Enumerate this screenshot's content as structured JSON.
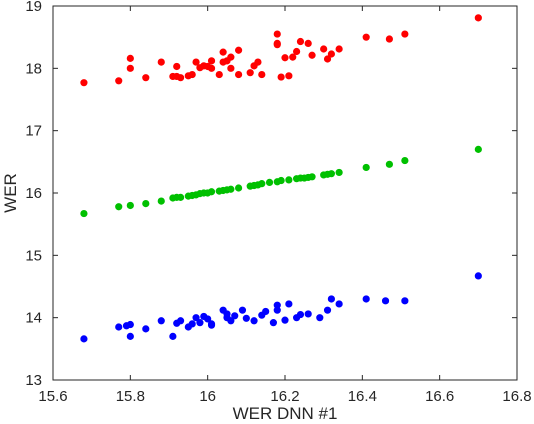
{
  "chart_data": {
    "type": "scatter",
    "title": "",
    "xlabel": "WER DNN #1",
    "ylabel": "WER",
    "xlim": [
      15.6,
      16.8
    ],
    "ylim": [
      13,
      19
    ],
    "x_ticks": [
      "15.6",
      "15.8",
      "16",
      "16.2",
      "16.4",
      "16.6",
      "16.8"
    ],
    "y_ticks": [
      "13",
      "14",
      "15",
      "16",
      "17",
      "18",
      "19"
    ],
    "grid": false,
    "legend": "none",
    "series": [
      {
        "color": "#ff0000",
        "points": [
          [
            15.68,
            17.77
          ],
          [
            15.77,
            17.8
          ],
          [
            15.8,
            18.16
          ],
          [
            15.8,
            18.0
          ],
          [
            15.84,
            17.85
          ],
          [
            15.88,
            18.1
          ],
          [
            15.91,
            17.87
          ],
          [
            15.92,
            18.03
          ],
          [
            15.92,
            17.87
          ],
          [
            15.93,
            17.85
          ],
          [
            15.95,
            17.88
          ],
          [
            15.96,
            17.9
          ],
          [
            15.97,
            18.1
          ],
          [
            15.98,
            18.01
          ],
          [
            15.99,
            18.04
          ],
          [
            16.0,
            18.03
          ],
          [
            16.01,
            18.12
          ],
          [
            16.01,
            18.0
          ],
          [
            16.03,
            17.9
          ],
          [
            16.04,
            18.1
          ],
          [
            16.04,
            18.26
          ],
          [
            16.05,
            18.12
          ],
          [
            16.06,
            18.18
          ],
          [
            16.06,
            18.0
          ],
          [
            16.08,
            18.29
          ],
          [
            16.08,
            17.9
          ],
          [
            16.11,
            17.93
          ],
          [
            16.12,
            18.04
          ],
          [
            16.13,
            18.1
          ],
          [
            16.14,
            17.9
          ],
          [
            16.18,
            18.55
          ],
          [
            16.18,
            18.4
          ],
          [
            16.18,
            18.38
          ],
          [
            16.19,
            17.86
          ],
          [
            16.2,
            18.17
          ],
          [
            16.21,
            17.88
          ],
          [
            16.22,
            18.18
          ],
          [
            16.23,
            18.27
          ],
          [
            16.24,
            18.43
          ],
          [
            16.26,
            18.4
          ],
          [
            16.27,
            18.21
          ],
          [
            16.3,
            18.31
          ],
          [
            16.31,
            18.15
          ],
          [
            16.32,
            18.23
          ],
          [
            16.34,
            18.31
          ],
          [
            16.41,
            18.5
          ],
          [
            16.47,
            18.47
          ],
          [
            16.51,
            18.55
          ],
          [
            16.7,
            18.81
          ]
        ]
      },
      {
        "color": "#00c000",
        "points": [
          [
            15.68,
            15.67
          ],
          [
            15.77,
            15.78
          ],
          [
            15.8,
            15.8
          ],
          [
            15.84,
            15.83
          ],
          [
            15.88,
            15.87
          ],
          [
            15.91,
            15.92
          ],
          [
            15.92,
            15.93
          ],
          [
            15.93,
            15.93
          ],
          [
            15.95,
            15.95
          ],
          [
            15.96,
            15.96
          ],
          [
            15.97,
            15.97
          ],
          [
            15.98,
            15.99
          ],
          [
            15.99,
            16.0
          ],
          [
            16.0,
            16.0
          ],
          [
            16.01,
            16.02
          ],
          [
            16.03,
            16.03
          ],
          [
            16.04,
            16.04
          ],
          [
            16.05,
            16.05
          ],
          [
            16.06,
            16.06
          ],
          [
            16.08,
            16.08
          ],
          [
            16.11,
            16.11
          ],
          [
            16.12,
            16.12
          ],
          [
            16.13,
            16.13
          ],
          [
            16.14,
            16.15
          ],
          [
            16.16,
            16.17
          ],
          [
            16.18,
            16.18
          ],
          [
            16.19,
            16.2
          ],
          [
            16.21,
            16.21
          ],
          [
            16.23,
            16.23
          ],
          [
            16.24,
            16.24
          ],
          [
            16.25,
            16.24
          ],
          [
            16.26,
            16.25
          ],
          [
            16.27,
            16.26
          ],
          [
            16.3,
            16.29
          ],
          [
            16.31,
            16.3
          ],
          [
            16.32,
            16.31
          ],
          [
            16.34,
            16.33
          ],
          [
            16.41,
            16.41
          ],
          [
            16.47,
            16.46
          ],
          [
            16.51,
            16.52
          ],
          [
            16.7,
            16.7
          ]
        ]
      },
      {
        "color": "#0000ff",
        "points": [
          [
            15.68,
            13.66
          ],
          [
            15.77,
            13.85
          ],
          [
            15.79,
            13.87
          ],
          [
            15.8,
            13.7
          ],
          [
            15.8,
            13.89
          ],
          [
            15.84,
            13.82
          ],
          [
            15.88,
            13.95
          ],
          [
            15.91,
            13.7
          ],
          [
            15.92,
            13.91
          ],
          [
            15.93,
            13.95
          ],
          [
            15.95,
            13.85
          ],
          [
            15.96,
            13.9
          ],
          [
            15.97,
            14.0
          ],
          [
            15.98,
            13.92
          ],
          [
            15.99,
            14.02
          ],
          [
            16.0,
            13.98
          ],
          [
            16.01,
            13.9
          ],
          [
            16.01,
            13.88
          ],
          [
            16.04,
            14.12
          ],
          [
            16.05,
            14.06
          ],
          [
            16.05,
            14.0
          ],
          [
            16.06,
            13.95
          ],
          [
            16.07,
            14.03
          ],
          [
            16.09,
            14.12
          ],
          [
            16.1,
            13.99
          ],
          [
            16.12,
            13.95
          ],
          [
            16.14,
            14.04
          ],
          [
            16.15,
            14.1
          ],
          [
            16.17,
            13.92
          ],
          [
            16.18,
            14.2
          ],
          [
            16.18,
            14.12
          ],
          [
            16.2,
            13.96
          ],
          [
            16.21,
            14.22
          ],
          [
            16.23,
            14.0
          ],
          [
            16.24,
            14.05
          ],
          [
            16.26,
            14.06
          ],
          [
            16.29,
            14.0
          ],
          [
            16.31,
            14.12
          ],
          [
            16.32,
            14.3
          ],
          [
            16.34,
            14.22
          ],
          [
            16.41,
            14.3
          ],
          [
            16.46,
            14.27
          ],
          [
            16.51,
            14.27
          ],
          [
            16.7,
            14.67
          ]
        ]
      }
    ]
  }
}
